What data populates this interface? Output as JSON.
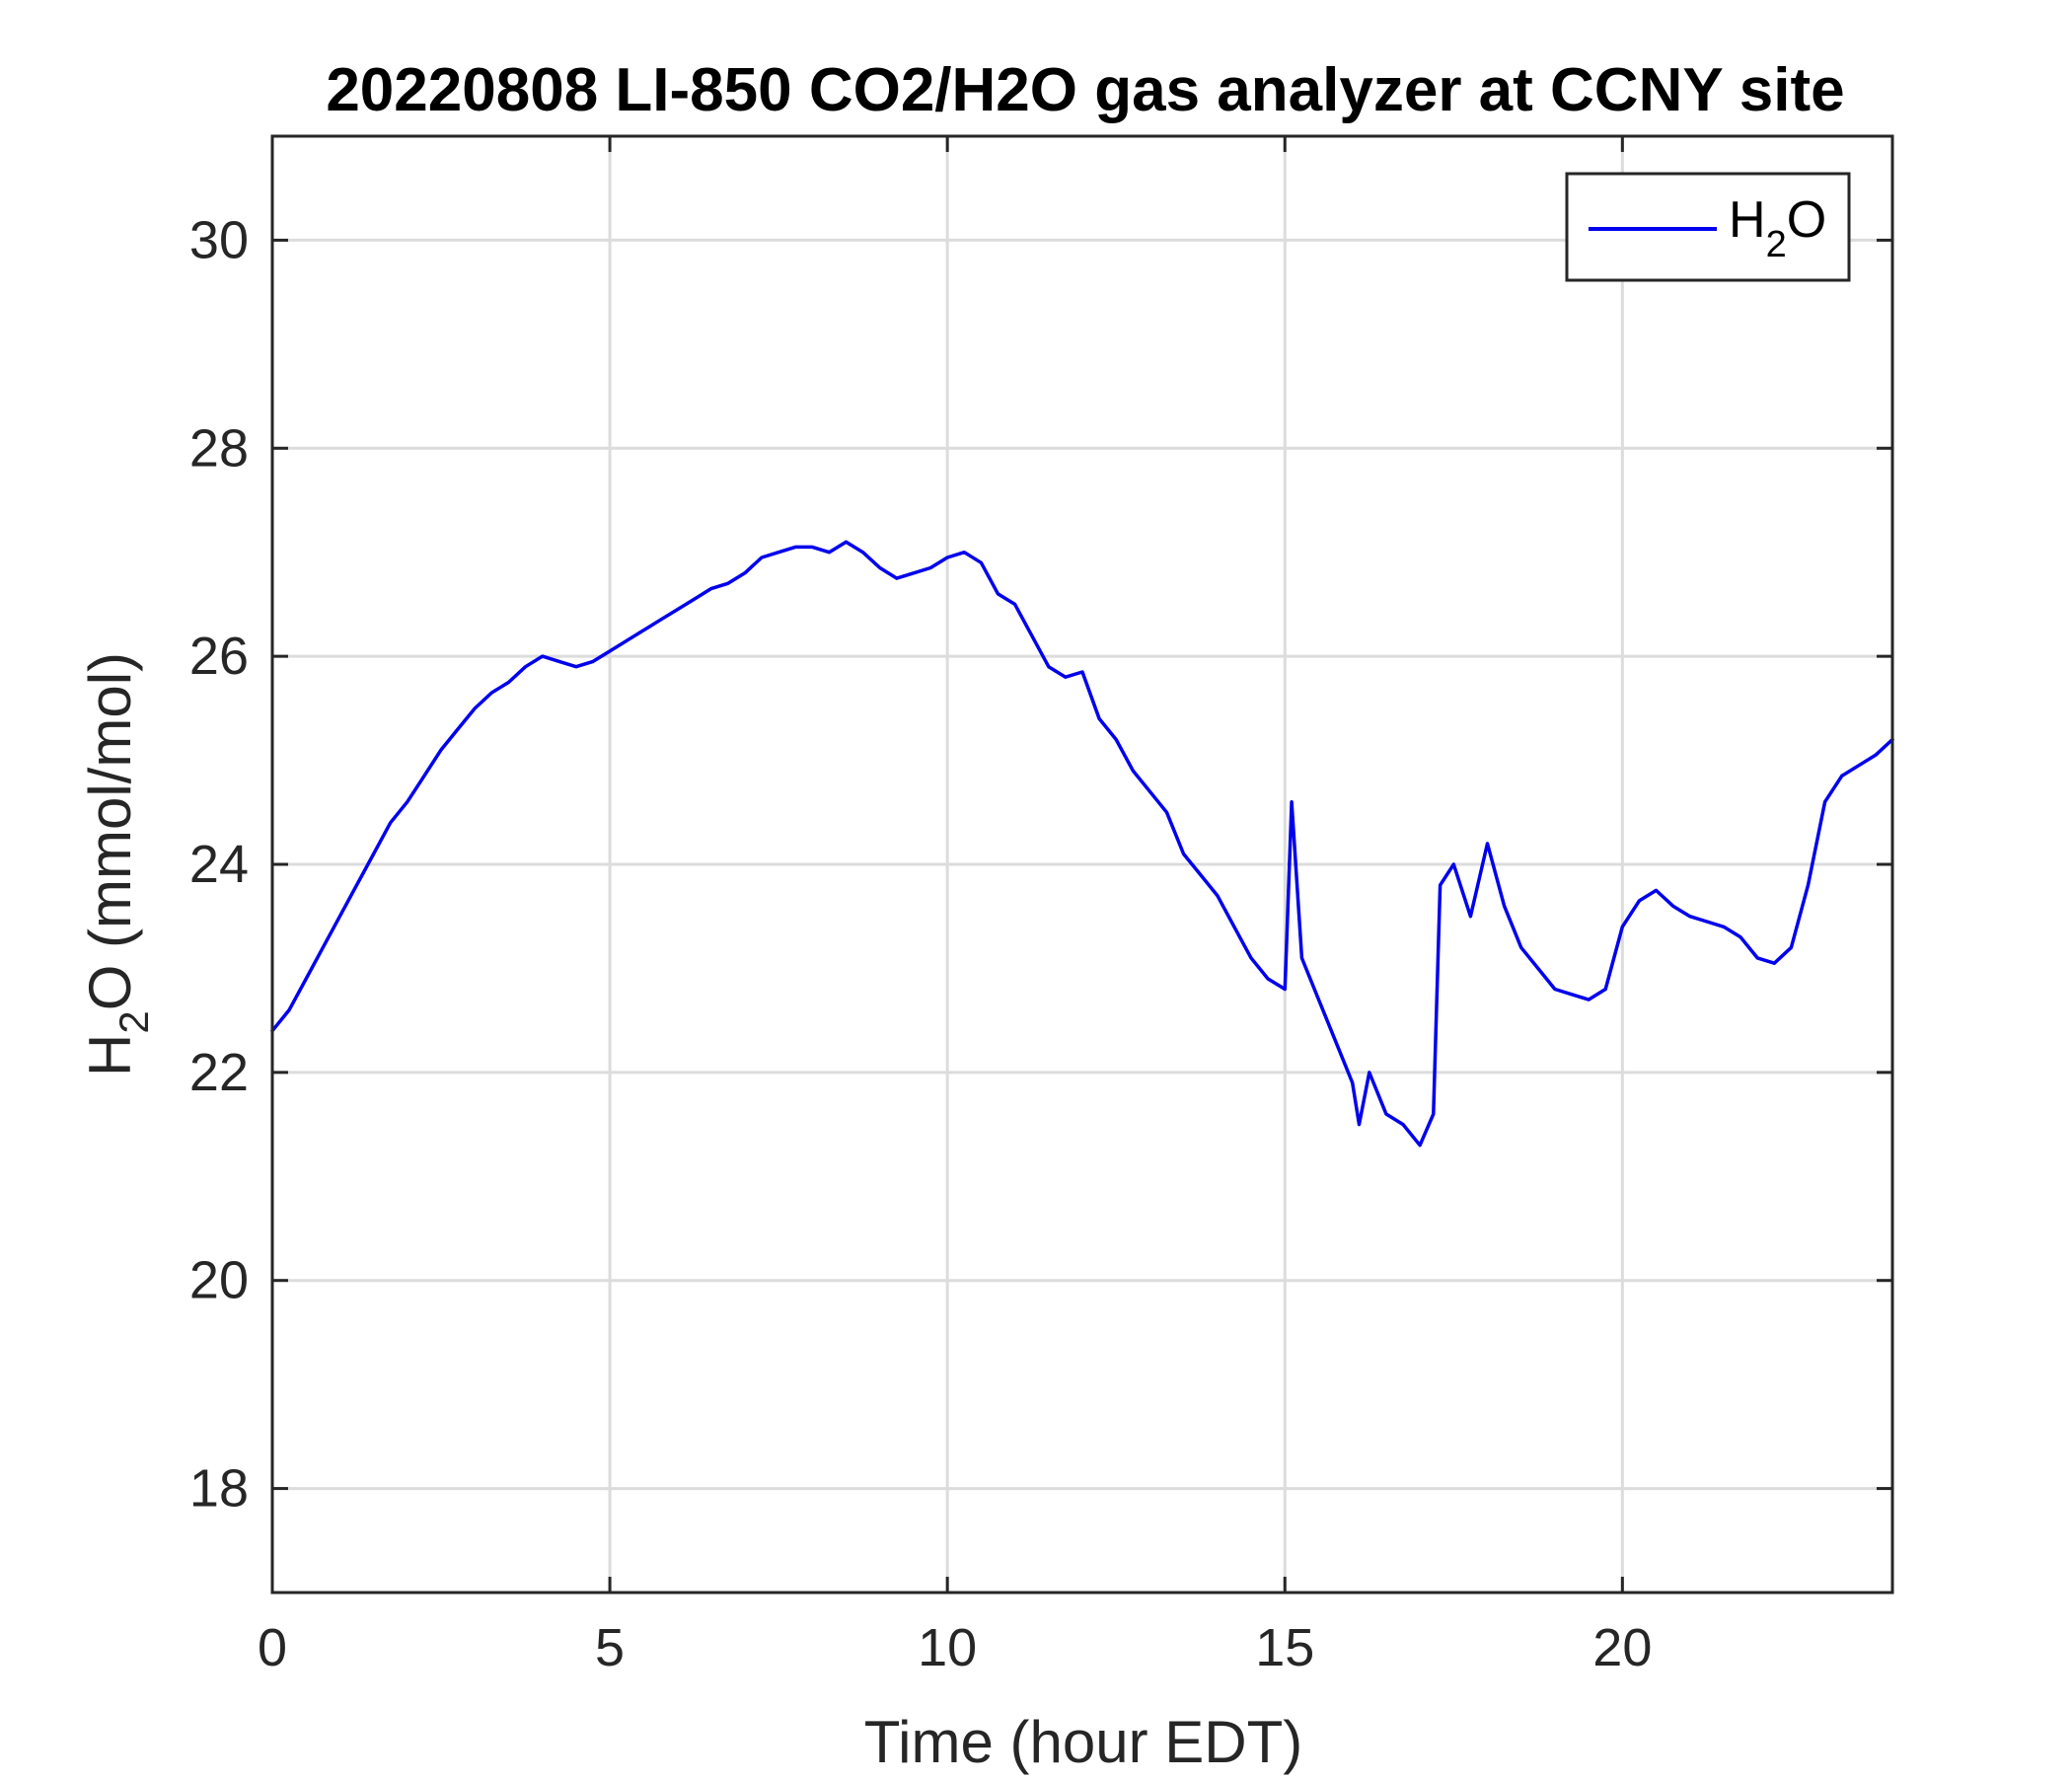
{
  "chart_data": {
    "type": "line",
    "title": "20220808 LI-850 CO2/H2O gas analyzer at CCNY site",
    "xlabel": "Time (hour EDT)",
    "ylabel": {
      "main": "H",
      "sub": "2",
      "rest": "O (mmol/mol)"
    },
    "xlim": [
      0,
      24
    ],
    "ylim": [
      17,
      31
    ],
    "xticks": [
      0,
      5,
      10,
      15,
      20
    ],
    "yticks": [
      18,
      20,
      22,
      24,
      26,
      28,
      30
    ],
    "grid": true,
    "legend": {
      "placement": "top-right",
      "entries": [
        {
          "main": "H",
          "sub": "2",
          "rest": "O"
        }
      ]
    },
    "series": [
      {
        "name": "H2O",
        "color": "#0000ee",
        "x": [
          0,
          0.25,
          0.5,
          0.75,
          1.0,
          1.25,
          1.5,
          1.75,
          2.0,
          2.25,
          2.5,
          2.75,
          3.0,
          3.25,
          3.5,
          3.75,
          4.0,
          4.25,
          4.5,
          4.75,
          5.0,
          5.25,
          5.5,
          5.75,
          6.0,
          6.25,
          6.5,
          6.75,
          7.0,
          7.25,
          7.5,
          7.75,
          8.0,
          8.25,
          8.5,
          8.75,
          9.0,
          9.25,
          9.5,
          9.75,
          10.0,
          10.25,
          10.5,
          10.75,
          11.0,
          11.25,
          11.5,
          11.75,
          12.0,
          12.25,
          12.5,
          12.75,
          13.0,
          13.25,
          13.5,
          13.75,
          14.0,
          14.25,
          14.5,
          14.75,
          15.0,
          15.1,
          15.25,
          15.5,
          15.75,
          16.0,
          16.1,
          16.25,
          16.5,
          16.75,
          17.0,
          17.2,
          17.3,
          17.5,
          17.75,
          18.0,
          18.25,
          18.5,
          18.75,
          19.0,
          19.25,
          19.5,
          19.75,
          20.0,
          20.25,
          20.5,
          20.75,
          21.0,
          21.25,
          21.5,
          21.75,
          22.0,
          22.25,
          22.5,
          22.75,
          23.0,
          23.25,
          23.5,
          23.75,
          24.0
        ],
        "values": [
          22.4,
          22.6,
          22.9,
          23.2,
          23.5,
          23.8,
          24.1,
          24.4,
          24.6,
          24.85,
          25.1,
          25.3,
          25.5,
          25.65,
          25.75,
          25.9,
          26.0,
          25.95,
          25.9,
          25.95,
          26.05,
          26.15,
          26.25,
          26.35,
          26.45,
          26.55,
          26.65,
          26.7,
          26.8,
          26.95,
          27.0,
          27.05,
          27.05,
          27.0,
          27.1,
          27.0,
          26.85,
          26.75,
          26.8,
          26.85,
          26.95,
          27.0,
          26.9,
          26.6,
          26.5,
          26.2,
          25.9,
          25.8,
          25.85,
          25.4,
          25.2,
          24.9,
          24.7,
          24.5,
          24.1,
          23.9,
          23.7,
          23.4,
          23.1,
          22.9,
          22.8,
          24.6,
          23.1,
          22.7,
          22.3,
          21.9,
          21.5,
          22.0,
          21.6,
          21.5,
          21.3,
          21.6,
          23.8,
          24.0,
          23.5,
          24.2,
          23.6,
          23.2,
          23.0,
          22.8,
          22.75,
          22.7,
          22.8,
          23.4,
          23.65,
          23.75,
          23.6,
          23.5,
          23.45,
          23.4,
          23.3,
          23.1,
          23.05,
          23.2,
          23.8,
          24.6,
          24.85,
          24.95,
          25.05,
          25.2
        ]
      }
    ]
  }
}
